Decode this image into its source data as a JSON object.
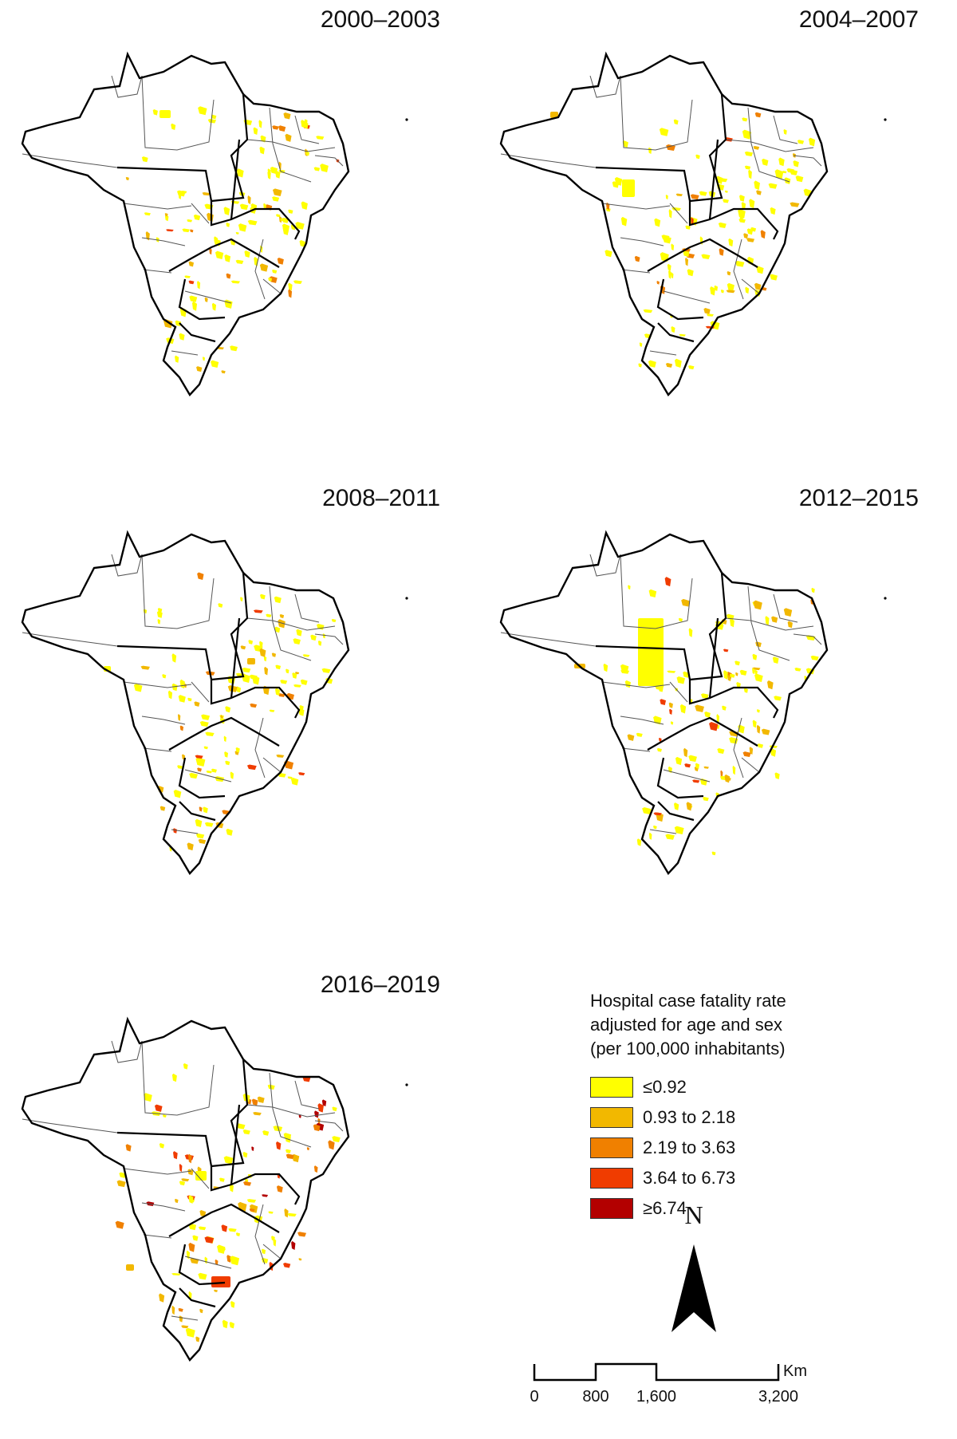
{
  "panels": [
    {
      "title": "2000–2003"
    },
    {
      "title": "2004–2007"
    },
    {
      "title": "2008–2011"
    },
    {
      "title": "2012–2015"
    },
    {
      "title": "2016–2019"
    }
  ],
  "legend": {
    "title_lines": [
      "Hospital case fatality rate",
      "adjusted for age and sex",
      "(per 100,000 inhabitants)"
    ],
    "classes": [
      {
        "label": "≤0.92",
        "color": "#ffff00"
      },
      {
        "label": "0.93 to 2.18",
        "color": "#f2b800"
      },
      {
        "label": "2.19 to 3.63",
        "color": "#f08000"
      },
      {
        "label": "3.64 to 6.73",
        "color": "#f03c00"
      },
      {
        "label": "≥6.74",
        "color": "#b30000"
      }
    ]
  },
  "north_arrow": {
    "letter": "N"
  },
  "scale_bar": {
    "ticks": [
      "0",
      "800",
      "1,600",
      "3,200"
    ],
    "unit": "Km"
  }
}
